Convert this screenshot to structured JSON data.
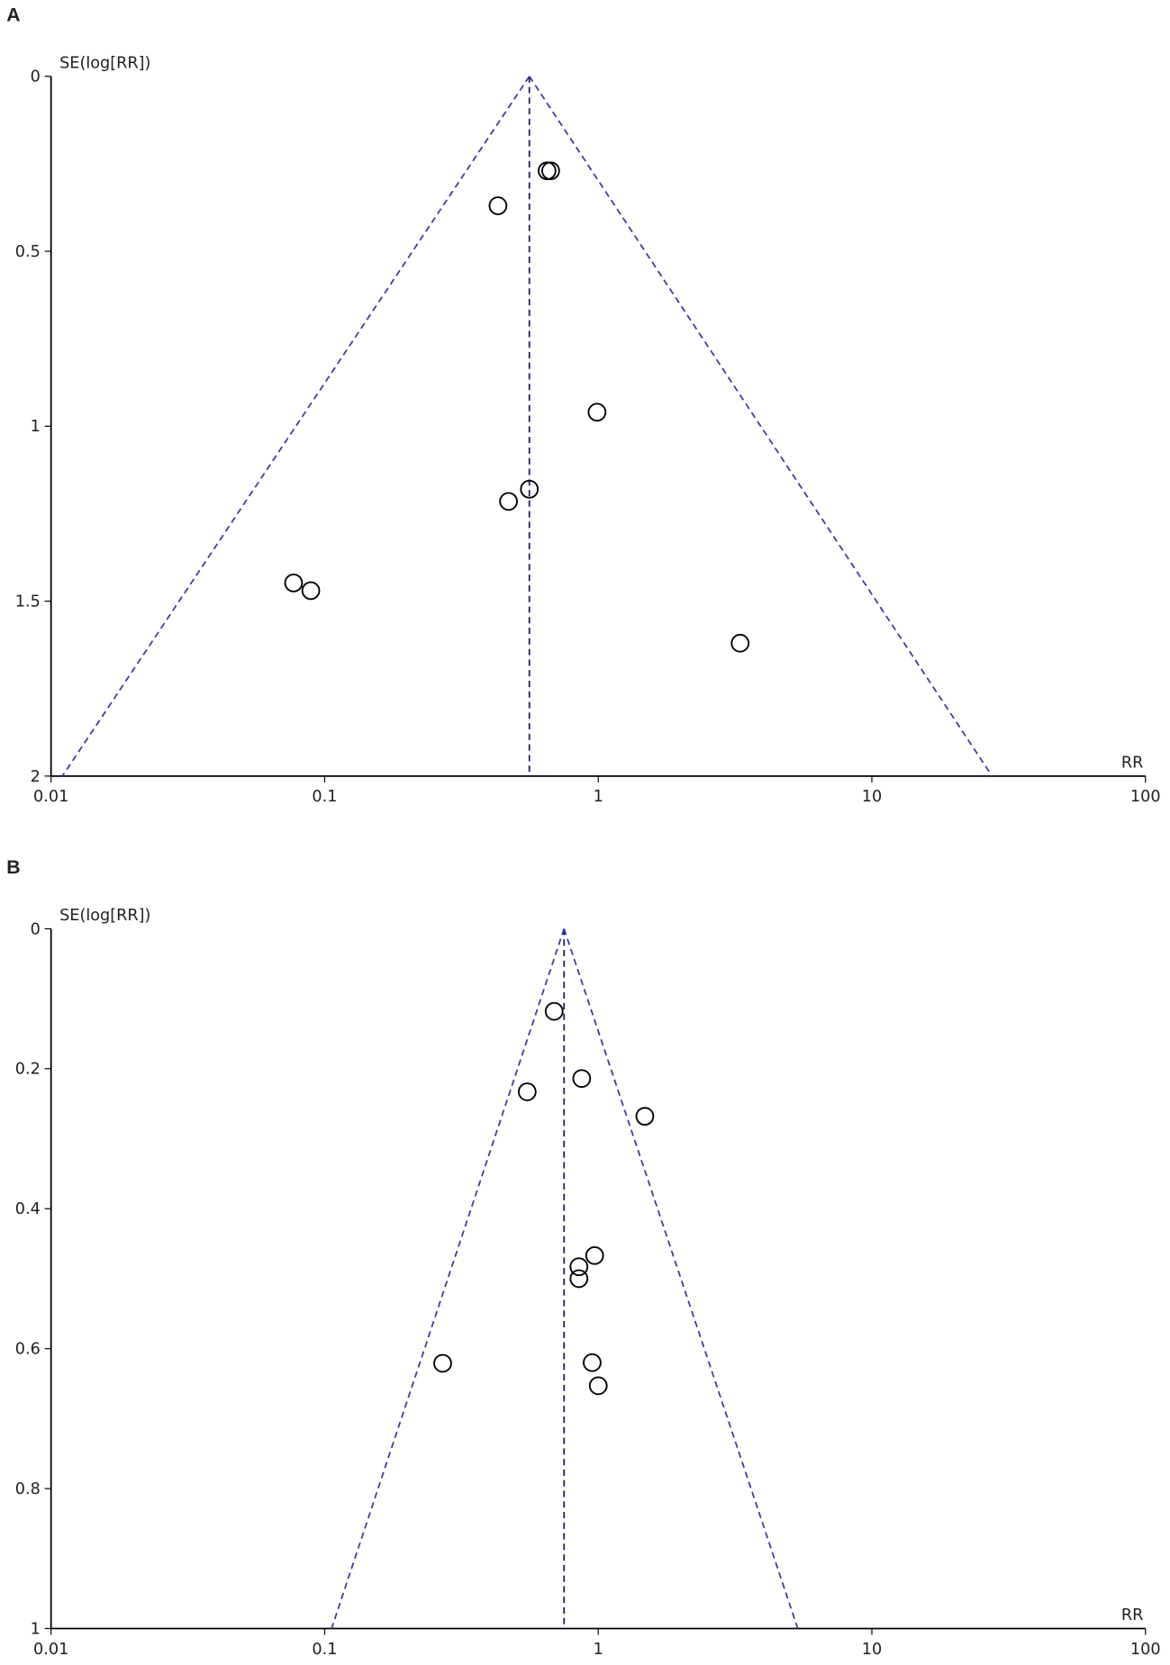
{
  "chart_data": [
    {
      "type": "funnel",
      "panel_label": "A",
      "y_label": "SE(log[RR])",
      "x_label": "RR",
      "xscale": "log",
      "xlim": [
        0.01,
        100
      ],
      "xticks": [
        0.01,
        0.1,
        1,
        10,
        100
      ],
      "ylim": [
        0,
        2
      ],
      "yticks": [
        0,
        0.5,
        1,
        1.5,
        2
      ],
      "y_inverted": true,
      "pooled_rr": 0.56,
      "funnel_bottom": [
        0.011,
        27.5
      ],
      "line_color": "#3a3aa8",
      "marker_color": "#000000",
      "x": [
        0.65,
        0.67,
        0.43,
        0.99,
        0.56,
        0.47,
        0.077,
        0.089,
        3.3
      ],
      "values": [
        0.27,
        0.27,
        0.37,
        0.96,
        1.18,
        1.215,
        1.448,
        1.47,
        1.62
      ]
    },
    {
      "type": "funnel",
      "panel_label": "B",
      "y_label": "SE(log[RR])",
      "x_label": "RR",
      "xscale": "log",
      "xlim": [
        0.01,
        100
      ],
      "xticks": [
        0.01,
        0.1,
        1,
        10,
        100
      ],
      "ylim": [
        0,
        1
      ],
      "yticks": [
        0,
        0.2,
        0.4,
        0.6,
        0.8,
        1
      ],
      "y_inverted": true,
      "pooled_rr": 0.75,
      "funnel_bottom": [
        0.106,
        5.36
      ],
      "line_color": "#3a3aa8",
      "marker_color": "#000000",
      "x": [
        0.69,
        0.87,
        0.55,
        1.48,
        0.97,
        0.85,
        0.85,
        0.27,
        0.95,
        1.0
      ],
      "values": [
        0.118,
        0.214,
        0.233,
        0.268,
        0.467,
        0.483,
        0.5,
        0.621,
        0.62,
        0.653
      ]
    }
  ]
}
